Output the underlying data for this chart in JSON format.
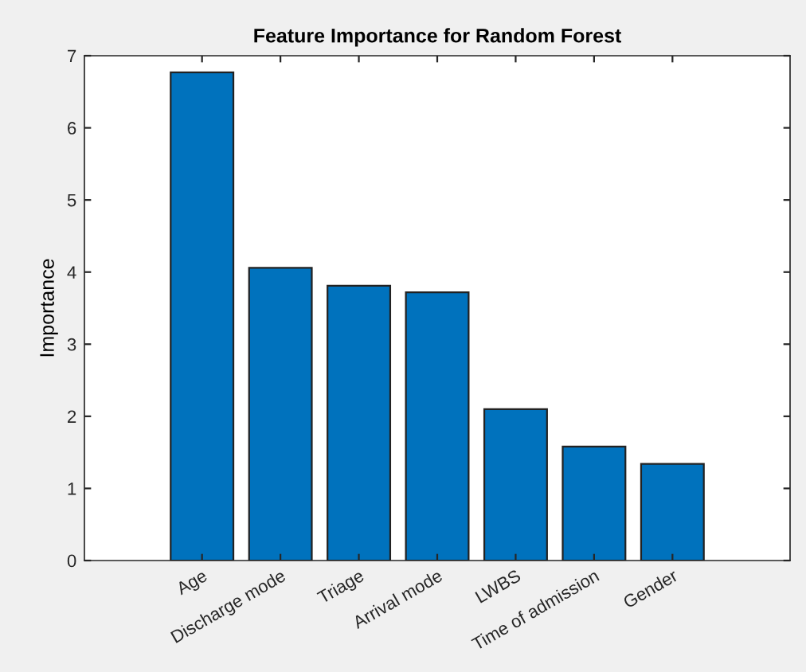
{
  "chart_data": {
    "type": "bar",
    "title": "Feature Importance for Random Forest",
    "ylabel": "Importance",
    "categories": [
      "Age",
      "Discharge mode",
      "Triage",
      "Arrival mode",
      "LWBS",
      "Time of admission",
      "Gender"
    ],
    "values": [
      6.77,
      4.06,
      3.81,
      3.72,
      2.1,
      1.58,
      1.34
    ],
    "color": "#0072bd",
    "ylim": [
      0,
      7
    ],
    "yticks": [
      0,
      1,
      2,
      3,
      4,
      5,
      6,
      7
    ],
    "grid": false
  }
}
